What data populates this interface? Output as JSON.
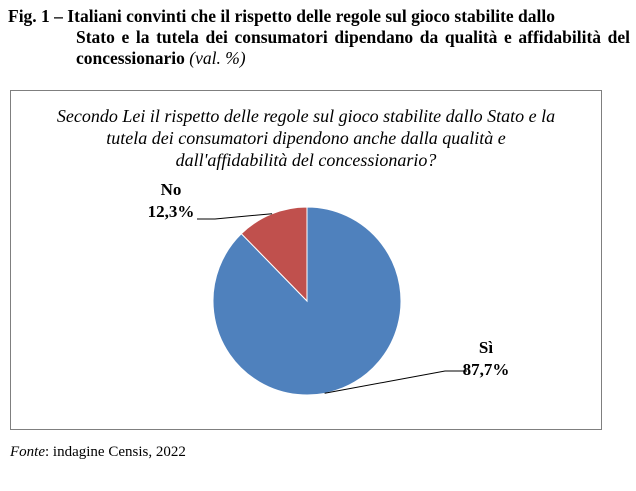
{
  "figure": {
    "title_prefix": "Fig. 1 – Italiani convinti che il rispetto delle regole sul gioco stabilite dallo",
    "title_rest": "Stato e la tutela dei consumatori dipendano da qualità e affidabilità del concessionario",
    "unit": "(val. %)"
  },
  "source": {
    "label": "Fonte",
    "text": ": indagine Censis, 2022"
  },
  "chart_data": {
    "type": "pie",
    "title": "Secondo Lei il rispetto delle regole sul gioco stabilite dallo Stato e la tutela dei consumatori dipendono anche dalla qualità e dall'affidabilità del concessionario?",
    "categories": [
      "Sì",
      "No"
    ],
    "values": [
      87.7,
      12.3
    ],
    "value_labels": [
      "87,7%",
      "12,3%"
    ],
    "colors": [
      "#4f81bd",
      "#c0504d"
    ],
    "legend": "none"
  }
}
